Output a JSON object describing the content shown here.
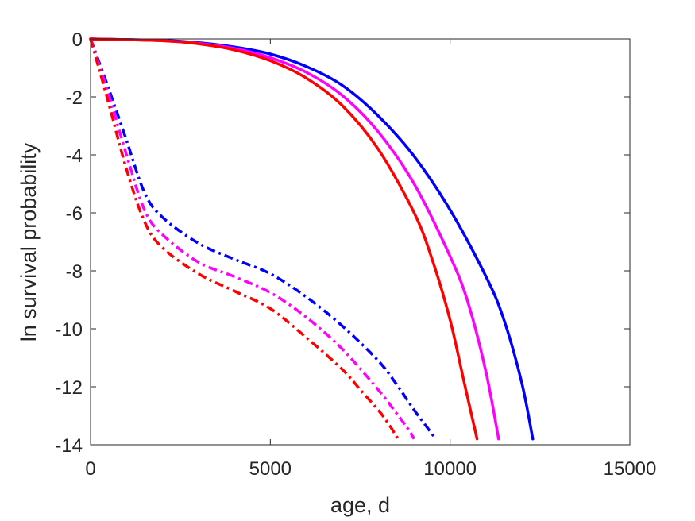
{
  "chart_data": {
    "type": "line",
    "title": "",
    "xlabel": "age, d",
    "ylabel": "ln survival probability",
    "xlim": [
      0,
      15000
    ],
    "ylim": [
      -14,
      0
    ],
    "xticks": [
      0,
      5000,
      10000,
      15000
    ],
    "xtick_labels": [
      "0",
      "5000",
      "10000",
      "15000"
    ],
    "yticks": [
      0,
      -2,
      -4,
      -6,
      -8,
      -10,
      -12,
      -14
    ],
    "ytick_labels": [
      "0",
      "-2",
      "-4",
      "-6",
      "-8",
      "-10",
      "-12",
      "-14"
    ],
    "grid": false,
    "series": [
      {
        "color": "#0000ff",
        "style": "solid",
        "x": [
          0,
          2000,
          3000,
          4000,
          5000,
          6000,
          7000,
          8000,
          9000,
          10000,
          11000,
          11500,
          12000,
          12300
        ],
        "y": [
          0,
          -0.05,
          -0.13,
          -0.28,
          -0.52,
          -0.95,
          -1.6,
          -2.65,
          -4.05,
          -5.9,
          -8.2,
          -9.7,
          -11.9,
          -13.8
        ]
      },
      {
        "color": "#ff00ff",
        "style": "solid",
        "x": [
          0,
          2000,
          3000,
          4000,
          5000,
          6000,
          7000,
          8000,
          9000,
          10000,
          10500,
          11000,
          11350
        ],
        "y": [
          0,
          -0.06,
          -0.15,
          -0.33,
          -0.65,
          -1.15,
          -1.95,
          -3.2,
          -5.0,
          -7.5,
          -9.1,
          -11.5,
          -13.8
        ]
      },
      {
        "color": "#ff0000",
        "style": "solid",
        "x": [
          0,
          2000,
          3000,
          4000,
          5000,
          6000,
          7000,
          8000,
          9000,
          9500,
          10000,
          10400,
          10750
        ],
        "y": [
          0,
          -0.06,
          -0.17,
          -0.38,
          -0.75,
          -1.35,
          -2.3,
          -3.8,
          -6.0,
          -7.6,
          -9.7,
          -11.9,
          -13.8
        ]
      },
      {
        "color": "#0000ff",
        "style": "dashdot",
        "x": [
          0,
          500,
          1000,
          1500,
          2000,
          3000,
          4000,
          5000,
          6000,
          7000,
          8000,
          8500,
          9000,
          9300,
          9600
        ],
        "y": [
          0,
          -1.7,
          -3.5,
          -5.3,
          -6.15,
          -7.05,
          -7.6,
          -8.1,
          -8.9,
          -9.9,
          -11.1,
          -11.9,
          -12.8,
          -13.3,
          -13.8
        ]
      },
      {
        "color": "#ff00ff",
        "style": "dashdot",
        "x": [
          0,
          500,
          1000,
          1500,
          2000,
          3000,
          4000,
          5000,
          6000,
          7000,
          8000,
          8500,
          8800,
          9000
        ],
        "y": [
          0,
          -1.9,
          -4.0,
          -5.9,
          -6.75,
          -7.7,
          -8.2,
          -8.75,
          -9.6,
          -10.7,
          -12.1,
          -12.9,
          -13.4,
          -13.8
        ]
      },
      {
        "color": "#ff0000",
        "style": "dashdot",
        "x": [
          0,
          500,
          1000,
          1500,
          2000,
          3000,
          4000,
          5000,
          6000,
          7000,
          7500,
          8000,
          8300,
          8550
        ],
        "y": [
          0,
          -2.2,
          -4.5,
          -6.3,
          -7.2,
          -8.1,
          -8.7,
          -9.3,
          -10.3,
          -11.4,
          -12.1,
          -12.8,
          -13.3,
          -13.8
        ]
      }
    ]
  }
}
